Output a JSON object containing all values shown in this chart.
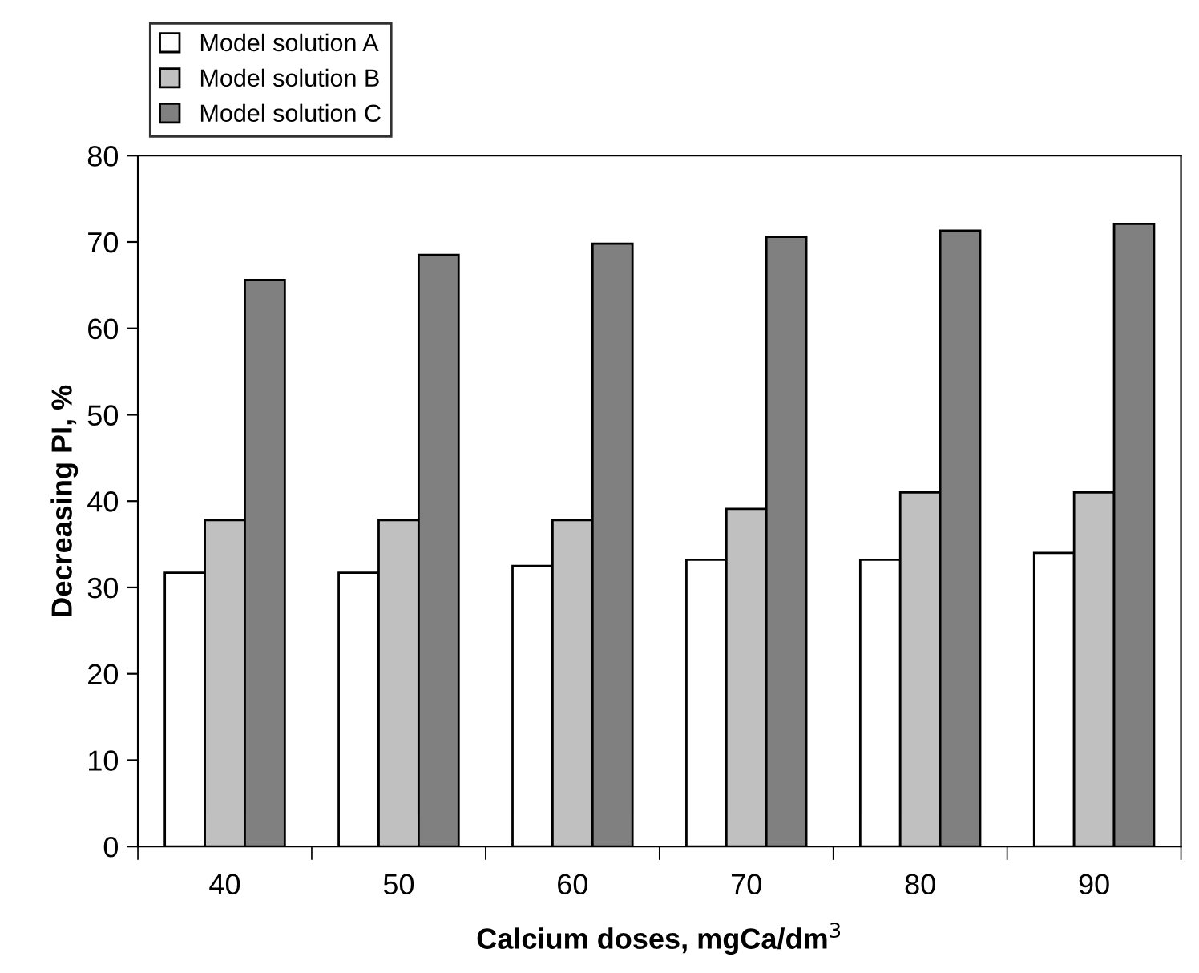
{
  "chart_data": {
    "type": "bar",
    "xlabel": "Calcium doses, mgCa/dm$^{3}$",
    "ylabel": "Decreasing PI, %",
    "categories": [
      "40",
      "50",
      "60",
      "70",
      "80",
      "90"
    ],
    "series": [
      {
        "name": "Model solution A",
        "color": "#ffffff",
        "values": [
          31.7,
          31.7,
          32.5,
          33.2,
          33.2,
          34.0
        ]
      },
      {
        "name": "Model solution B",
        "color": "#c0c0c0",
        "values": [
          37.8,
          37.8,
          37.8,
          39.1,
          41.0,
          41.0
        ]
      },
      {
        "name": "Model solution C",
        "color": "#808080",
        "values": [
          65.6,
          68.5,
          69.8,
          70.6,
          71.3,
          72.1
        ]
      }
    ],
    "ylim": [
      0,
      80
    ],
    "yticks": [
      0,
      10,
      20,
      30,
      40,
      50,
      60,
      70,
      80
    ],
    "grid": false,
    "legend": "top left"
  }
}
